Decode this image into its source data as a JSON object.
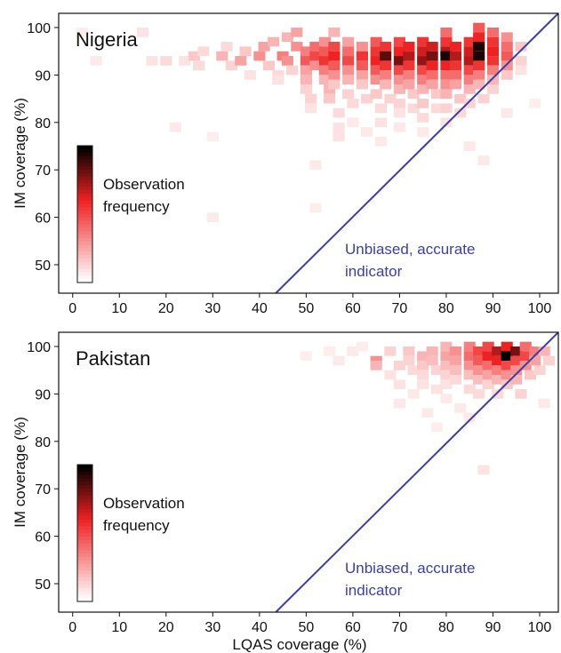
{
  "chart_data": [
    {
      "type": "heatmap",
      "title": "Nigeria",
      "xlabel": "",
      "ylabel": "IM coverage (%)",
      "xlim": [
        -3,
        104
      ],
      "ylim": [
        44,
        103
      ],
      "xticks": [
        "0",
        "10",
        "20",
        "30",
        "40",
        "50",
        "60",
        "70",
        "80",
        "90",
        "100"
      ],
      "yticks": [
        "50",
        "60",
        "70",
        "80",
        "90",
        "100"
      ],
      "grid": false,
      "colorbar_label": [
        "Observation",
        "frequency"
      ],
      "colormap": [
        "#ffffff",
        "#ee2222",
        "#000000"
      ],
      "reference_line": {
        "label": [
          "Unbiased, accurate",
          "indicator"
        ],
        "color": "#3b3fa6",
        "points": [
          [
            43.5,
            44
          ],
          [
            104,
            104
          ]
        ]
      },
      "cells": [
        [
          2,
          99,
          0.05
        ],
        [
          5,
          93,
          0.06
        ],
        [
          15,
          99,
          0.08
        ],
        [
          17,
          93,
          0.08
        ],
        [
          20,
          93,
          0.1
        ],
        [
          22,
          79,
          0.06
        ],
        [
          24,
          93,
          0.08
        ],
        [
          26,
          94,
          0.15
        ],
        [
          27,
          92,
          0.1
        ],
        [
          28,
          95,
          0.1
        ],
        [
          30,
          77,
          0.05
        ],
        [
          30,
          60,
          0.06
        ],
        [
          32,
          94,
          0.2
        ],
        [
          33,
          96,
          0.1
        ],
        [
          34,
          92,
          0.12
        ],
        [
          36,
          93,
          0.25
        ],
        [
          37,
          95,
          0.15
        ],
        [
          38,
          90,
          0.08
        ],
        [
          40,
          94,
          0.3
        ],
        [
          41,
          96,
          0.25
        ],
        [
          42,
          92,
          0.15
        ],
        [
          43,
          97,
          0.2
        ],
        [
          44,
          90,
          0.1
        ],
        [
          44,
          89,
          0.08
        ],
        [
          45,
          94,
          0.35
        ],
        [
          46,
          98,
          0.2
        ],
        [
          46,
          93,
          0.3
        ],
        [
          47,
          91,
          0.12
        ],
        [
          48,
          96,
          0.3
        ],
        [
          48,
          99,
          0.25
        ],
        [
          50,
          95,
          0.35
        ],
        [
          50,
          93,
          0.45
        ],
        [
          50,
          91,
          0.25
        ],
        [
          50,
          89,
          0.2
        ],
        [
          50,
          87,
          0.12
        ],
        [
          51,
          85,
          0.12
        ],
        [
          51,
          83,
          0.08
        ],
        [
          52,
          96,
          0.4
        ],
        [
          52,
          94,
          0.5
        ],
        [
          52,
          92,
          0.3
        ],
        [
          52,
          71,
          0.06
        ],
        [
          52,
          62,
          0.05
        ],
        [
          54,
          97,
          0.3
        ],
        [
          54,
          95,
          0.45
        ],
        [
          54,
          93,
          0.55
        ],
        [
          54,
          91,
          0.35
        ],
        [
          54,
          89,
          0.2
        ],
        [
          55,
          87,
          0.2
        ],
        [
          55,
          85,
          0.15
        ],
        [
          56,
          99,
          0.2
        ],
        [
          56,
          96,
          0.5
        ],
        [
          56,
          94,
          0.6
        ],
        [
          56,
          92,
          0.45
        ],
        [
          56,
          90,
          0.3
        ],
        [
          56,
          88,
          0.15
        ],
        [
          57,
          82,
          0.1
        ],
        [
          57,
          79,
          0.08
        ],
        [
          57,
          77,
          0.08
        ],
        [
          59,
          97,
          0.25
        ],
        [
          59,
          95,
          0.4
        ],
        [
          59,
          93,
          0.5
        ],
        [
          59,
          91,
          0.3
        ],
        [
          59,
          89,
          0.2
        ],
        [
          59,
          86,
          0.12
        ],
        [
          60,
          84,
          0.1
        ],
        [
          60,
          80,
          0.06
        ],
        [
          62,
          96,
          0.3
        ],
        [
          62,
          94,
          0.55
        ],
        [
          62,
          92,
          0.45
        ],
        [
          62,
          90,
          0.25
        ],
        [
          62,
          88,
          0.15
        ],
        [
          63,
          85,
          0.12
        ],
        [
          63,
          78,
          0.06
        ],
        [
          65,
          97,
          0.45
        ],
        [
          65,
          95,
          0.55
        ],
        [
          65,
          93,
          0.6
        ],
        [
          65,
          91,
          0.45
        ],
        [
          65,
          89,
          0.3
        ],
        [
          65,
          86,
          0.15
        ],
        [
          66,
          83,
          0.1
        ],
        [
          66,
          80,
          0.08
        ],
        [
          66,
          76,
          0.06
        ],
        [
          67,
          96,
          0.55
        ],
        [
          67,
          94,
          0.85
        ],
        [
          67,
          92,
          0.55
        ],
        [
          67,
          90,
          0.35
        ],
        [
          67,
          88,
          0.2
        ],
        [
          68,
          85,
          0.12
        ],
        [
          70,
          97,
          0.5
        ],
        [
          70,
          95,
          0.6
        ],
        [
          70,
          93,
          0.8
        ],
        [
          70,
          91,
          0.5
        ],
        [
          70,
          89,
          0.3
        ],
        [
          70,
          87,
          0.2
        ],
        [
          70,
          84,
          0.12
        ],
        [
          70,
          82,
          0.08
        ],
        [
          70,
          79,
          0.06
        ],
        [
          72,
          96,
          0.6
        ],
        [
          72,
          94,
          0.7
        ],
        [
          72,
          92,
          0.55
        ],
        [
          72,
          90,
          0.35
        ],
        [
          72,
          88,
          0.25
        ],
        [
          73,
          86,
          0.15
        ],
        [
          73,
          83,
          0.1
        ],
        [
          75,
          97,
          0.55
        ],
        [
          75,
          95,
          0.65
        ],
        [
          75,
          93,
          0.75
        ],
        [
          75,
          91,
          0.5
        ],
        [
          75,
          89,
          0.35
        ],
        [
          75,
          87,
          0.2
        ],
        [
          75,
          84,
          0.15
        ],
        [
          75,
          81,
          0.1
        ],
        [
          75,
          78,
          0.06
        ],
        [
          77,
          96,
          0.65
        ],
        [
          77,
          94,
          0.8
        ],
        [
          77,
          92,
          0.6
        ],
        [
          77,
          90,
          0.4
        ],
        [
          77,
          88,
          0.25
        ],
        [
          78,
          86,
          0.15
        ],
        [
          78,
          83,
          0.1
        ],
        [
          80,
          99,
          0.4
        ],
        [
          80,
          97,
          0.55
        ],
        [
          80,
          95,
          0.7
        ],
        [
          80,
          94,
          0.95
        ],
        [
          80,
          92,
          0.6
        ],
        [
          80,
          90,
          0.4
        ],
        [
          80,
          88,
          0.3
        ],
        [
          80,
          86,
          0.2
        ],
        [
          80,
          83,
          0.12
        ],
        [
          80,
          80,
          0.08
        ],
        [
          82,
          96,
          0.6
        ],
        [
          82,
          94,
          0.7
        ],
        [
          82,
          92,
          0.55
        ],
        [
          82,
          90,
          0.4
        ],
        [
          82,
          88,
          0.25
        ],
        [
          83,
          85,
          0.15
        ],
        [
          83,
          82,
          0.1
        ],
        [
          85,
          97,
          0.55
        ],
        [
          85,
          95,
          0.65
        ],
        [
          85,
          93,
          0.7
        ],
        [
          85,
          91,
          0.5
        ],
        [
          85,
          89,
          0.35
        ],
        [
          85,
          87,
          0.2
        ],
        [
          85,
          84,
          0.12
        ],
        [
          85,
          75,
          0.06
        ],
        [
          87,
          100,
          0.45
        ],
        [
          87,
          98,
          0.6
        ],
        [
          87,
          96,
          0.95
        ],
        [
          87,
          94,
          0.95
        ],
        [
          87,
          92,
          0.55
        ],
        [
          87,
          90,
          0.35
        ],
        [
          87,
          88,
          0.2
        ],
        [
          88,
          85,
          0.12
        ],
        [
          88,
          72,
          0.06
        ],
        [
          90,
          99,
          0.4
        ],
        [
          90,
          97,
          0.55
        ],
        [
          90,
          95,
          0.6
        ],
        [
          90,
          93,
          0.55
        ],
        [
          90,
          91,
          0.35
        ],
        [
          90,
          89,
          0.2
        ],
        [
          90,
          87,
          0.12
        ],
        [
          93,
          98,
          0.3
        ],
        [
          93,
          96,
          0.4
        ],
        [
          93,
          94,
          0.45
        ],
        [
          93,
          92,
          0.3
        ],
        [
          93,
          90,
          0.15
        ],
        [
          93,
          82,
          0.06
        ],
        [
          96,
          96,
          0.15
        ],
        [
          96,
          93,
          0.12
        ],
        [
          96,
          91,
          0.08
        ],
        [
          99,
          84,
          0.05
        ]
      ]
    },
    {
      "type": "heatmap",
      "title": "Pakistan",
      "xlabel": "LQAS coverage (%)",
      "ylabel": "IM coverage (%)",
      "xlim": [
        -3,
        104
      ],
      "ylim": [
        44,
        103
      ],
      "xticks": [
        "0",
        "10",
        "20",
        "30",
        "40",
        "50",
        "60",
        "70",
        "80",
        "90",
        "100"
      ],
      "yticks": [
        "50",
        "60",
        "70",
        "80",
        "90",
        "100"
      ],
      "grid": false,
      "colorbar_label": [
        "Observation",
        "frequency"
      ],
      "colormap": [
        "#ffffff",
        "#ee2222",
        "#000000"
      ],
      "reference_line": {
        "label": [
          "Unbiased, accurate",
          "indicator"
        ],
        "color": "#3b3fa6",
        "points": [
          [
            43.5,
            44
          ],
          [
            104,
            104
          ]
        ]
      },
      "cells": [
        [
          50,
          98,
          0.05
        ],
        [
          55,
          99,
          0.05
        ],
        [
          57,
          97,
          0.06
        ],
        [
          60,
          99,
          0.06
        ],
        [
          62,
          100,
          0.05
        ],
        [
          65,
          97,
          0.3
        ],
        [
          65,
          96,
          0.2
        ],
        [
          68,
          99,
          0.12
        ],
        [
          68,
          94,
          0.08
        ],
        [
          70,
          96,
          0.12
        ],
        [
          70,
          92,
          0.08
        ],
        [
          70,
          88,
          0.06
        ],
        [
          72,
          99,
          0.15
        ],
        [
          72,
          97,
          0.12
        ],
        [
          73,
          95,
          0.1
        ],
        [
          73,
          90,
          0.06
        ],
        [
          75,
          98,
          0.2
        ],
        [
          75,
          96,
          0.15
        ],
        [
          75,
          94,
          0.1
        ],
        [
          75,
          92,
          0.08
        ],
        [
          76,
          86,
          0.06
        ],
        [
          77,
          99,
          0.2
        ],
        [
          77,
          97,
          0.18
        ],
        [
          78,
          95,
          0.12
        ],
        [
          78,
          91,
          0.08
        ],
        [
          78,
          83,
          0.05
        ],
        [
          80,
          100,
          0.2
        ],
        [
          80,
          98,
          0.25
        ],
        [
          80,
          96,
          0.18
        ],
        [
          80,
          94,
          0.12
        ],
        [
          80,
          92,
          0.08
        ],
        [
          80,
          89,
          0.06
        ],
        [
          82,
          99,
          0.3
        ],
        [
          82,
          97,
          0.25
        ],
        [
          82,
          95,
          0.18
        ],
        [
          82,
          93,
          0.1
        ],
        [
          83,
          87,
          0.06
        ],
        [
          85,
          100,
          0.35
        ],
        [
          85,
          98,
          0.4
        ],
        [
          85,
          96,
          0.3
        ],
        [
          85,
          94,
          0.18
        ],
        [
          85,
          91,
          0.1
        ],
        [
          85,
          85,
          0.06
        ],
        [
          87,
          99,
          0.5
        ],
        [
          87,
          97,
          0.45
        ],
        [
          87,
          95,
          0.3
        ],
        [
          87,
          93,
          0.18
        ],
        [
          87,
          90,
          0.1
        ],
        [
          89,
          100,
          0.5
        ],
        [
          89,
          98,
          0.6
        ],
        [
          89,
          96,
          0.4
        ],
        [
          89,
          94,
          0.25
        ],
        [
          89,
          92,
          0.12
        ],
        [
          88,
          74,
          0.08
        ],
        [
          91,
          99,
          0.7
        ],
        [
          91,
          97,
          0.6
        ],
        [
          91,
          95,
          0.35
        ],
        [
          91,
          93,
          0.2
        ],
        [
          91,
          90,
          0.1
        ],
        [
          93,
          100,
          0.6
        ],
        [
          93,
          98,
          1.0
        ],
        [
          93,
          96,
          0.5
        ],
        [
          93,
          94,
          0.3
        ],
        [
          93,
          92,
          0.15
        ],
        [
          95,
          99,
          0.8
        ],
        [
          95,
          97,
          0.5
        ],
        [
          95,
          95,
          0.3
        ],
        [
          95,
          93,
          0.2
        ],
        [
          96,
          90,
          0.12
        ],
        [
          97,
          100,
          0.4
        ],
        [
          97,
          98,
          0.5
        ],
        [
          97,
          96,
          0.3
        ],
        [
          98,
          94,
          0.15
        ],
        [
          99,
          99,
          0.35
        ],
        [
          99,
          97,
          0.25
        ],
        [
          100,
          95,
          0.12
        ],
        [
          101,
          99,
          0.2
        ],
        [
          101,
          88,
          0.06
        ],
        [
          102,
          97,
          0.12
        ]
      ]
    }
  ]
}
